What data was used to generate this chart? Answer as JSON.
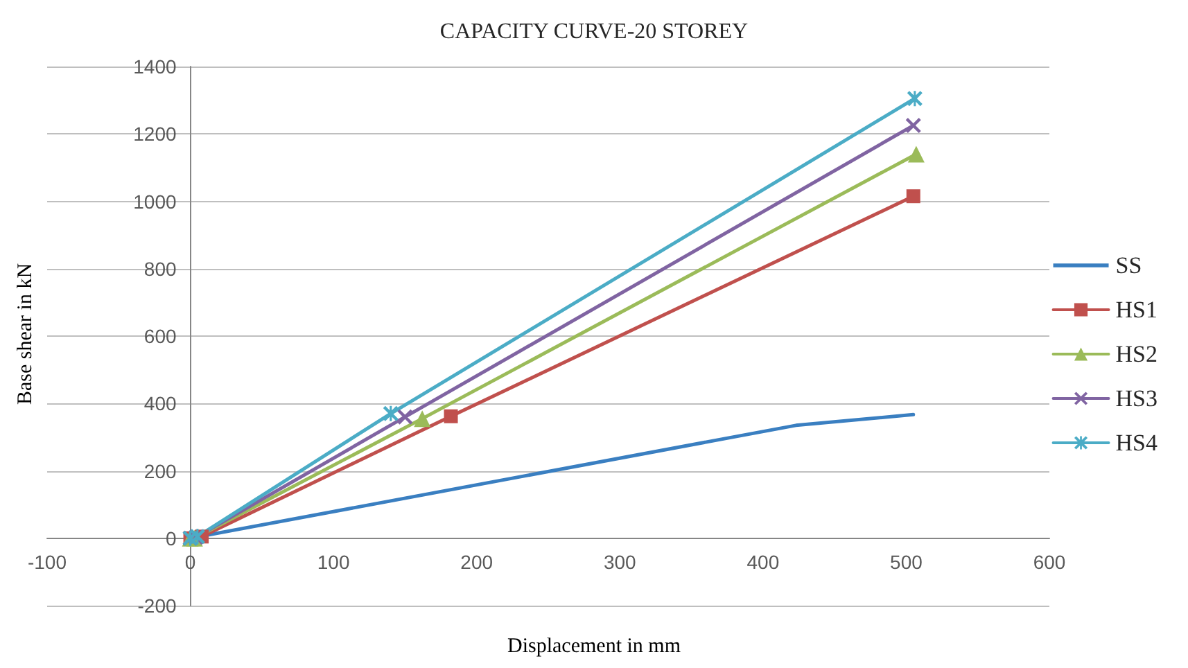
{
  "chart_data": {
    "type": "line",
    "title": "CAPACITY CURVE-20 STOREY",
    "xlabel": "Displacement in mm",
    "ylabel": "Base shear in kN",
    "xlim": [
      -100,
      600
    ],
    "xticks": [
      -100,
      0,
      100,
      200,
      300,
      400,
      500,
      600
    ],
    "ylim": [
      -200,
      1400
    ],
    "yticks": [
      -200,
      0,
      200,
      400,
      600,
      800,
      1000,
      1200,
      1400
    ],
    "grid": "y",
    "legend": "right",
    "series": [
      {
        "name": "SS",
        "color": "#3a7fc1",
        "marker": "none",
        "x": [
          0,
          423,
          505
        ],
        "values": [
          0,
          335,
          367
        ]
      },
      {
        "name": "HS1",
        "color": "#c0504d",
        "marker": "square",
        "x": [
          0,
          8,
          182,
          505
        ],
        "values": [
          0,
          5,
          362,
          1015
        ]
      },
      {
        "name": "HS2",
        "color": "#9bbb59",
        "marker": "triangle",
        "x": [
          0,
          3,
          162,
          507
        ],
        "values": [
          0,
          0,
          355,
          1140
        ]
      },
      {
        "name": "HS3",
        "color": "#8064a2",
        "marker": "cross",
        "x": [
          0,
          4,
          150,
          505
        ],
        "values": [
          0,
          3,
          360,
          1225
        ]
      },
      {
        "name": "HS4",
        "color": "#4bacc6",
        "marker": "star",
        "x": [
          0,
          5,
          140,
          506
        ],
        "values": [
          0,
          5,
          370,
          1305
        ]
      }
    ]
  }
}
